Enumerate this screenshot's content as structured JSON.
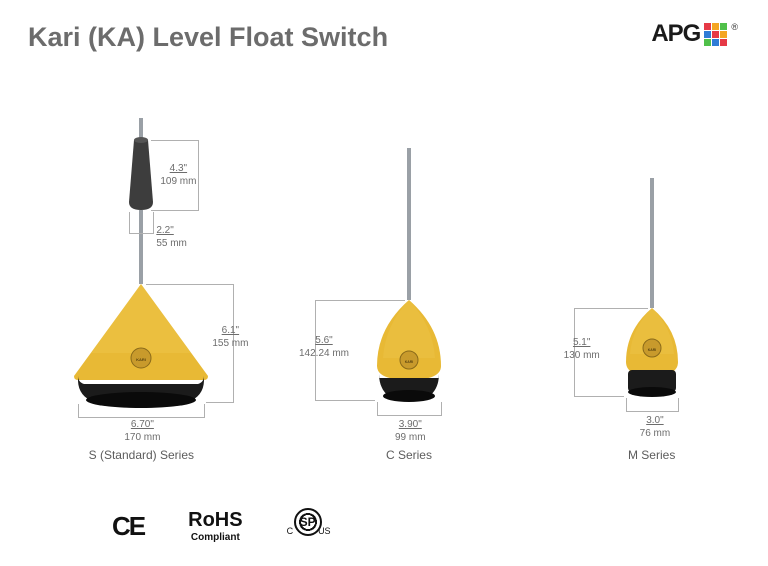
{
  "title": "Kari (KA) Level Float Switch",
  "logo": {
    "text": "APG",
    "colors": [
      "#e63946",
      "#f4a522",
      "#50c04a",
      "#2e7bd6",
      "#e63946",
      "#f4a522",
      "#50c04a",
      "#2e7bd6",
      "#e63946"
    ],
    "registered": "®"
  },
  "colors": {
    "float_yellow": "#e8b935",
    "float_yellow_dark": "#c2962a",
    "base_black": "#1b1b1b",
    "weight_gray": "#3d3d3d",
    "cable_gray": "#9aa0a6",
    "dim_gray": "#b0b0b0"
  },
  "products": [
    {
      "id": "s",
      "label": "S (Standard) Series",
      "has_weight": true,
      "dims": {
        "weight_h_in": "4.3\"",
        "weight_h_mm": "109 mm",
        "weight_w_in": "2.2\"",
        "weight_w_mm": "55 mm",
        "float_h_in": "6.1\"",
        "float_h_mm": "155 mm",
        "float_w_in": "6.70\"",
        "float_w_mm": "170 mm"
      }
    },
    {
      "id": "c",
      "label": "C Series",
      "has_weight": false,
      "dims": {
        "float_h_in": "5.6\"",
        "float_h_mm": "142.24 mm",
        "float_w_in": "3.90\"",
        "float_w_mm": "99 mm"
      }
    },
    {
      "id": "m",
      "label": "M Series",
      "has_weight": false,
      "dims": {
        "float_h_in": "5.1\"",
        "float_h_mm": "130 mm",
        "float_w_in": "3.0\"",
        "float_w_mm": "76 mm"
      }
    }
  ],
  "certs": {
    "ce": "CE",
    "rohs_line1": "RoHS",
    "rohs_line2": "Compliant",
    "csa": "SP",
    "csa_c": "C",
    "csa_us": "US"
  }
}
